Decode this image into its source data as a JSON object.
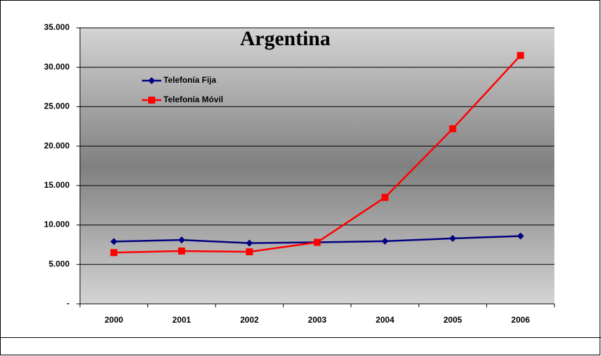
{
  "chart_data": {
    "type": "line",
    "title": "Argentina",
    "categories": [
      "2000",
      "2001",
      "2002",
      "2003",
      "2004",
      "2005",
      "2006"
    ],
    "series": [
      {
        "name": "Telefonía Fija",
        "color": "#000080",
        "marker": "diamond",
        "values": [
          7900,
          8100,
          7700,
          7800,
          7950,
          8300,
          8600
        ]
      },
      {
        "name": "Telefonía Móvil",
        "color": "#ff0000",
        "marker": "square",
        "values": [
          6500,
          6700,
          6600,
          7800,
          13500,
          22200,
          31500
        ]
      }
    ],
    "ylim": [
      0,
      35000
    ],
    "yticks": [
      {
        "value": 0,
        "label": "-"
      },
      {
        "value": 5000,
        "label": "5.000"
      },
      {
        "value": 10000,
        "label": "10.000"
      },
      {
        "value": 15000,
        "label": "15.000"
      },
      {
        "value": 20000,
        "label": "20.000"
      },
      {
        "value": 25000,
        "label": "25.000"
      },
      {
        "value": 30000,
        "label": "30.000"
      },
      {
        "value": 35000,
        "label": "35.000"
      }
    ],
    "grid": true
  }
}
